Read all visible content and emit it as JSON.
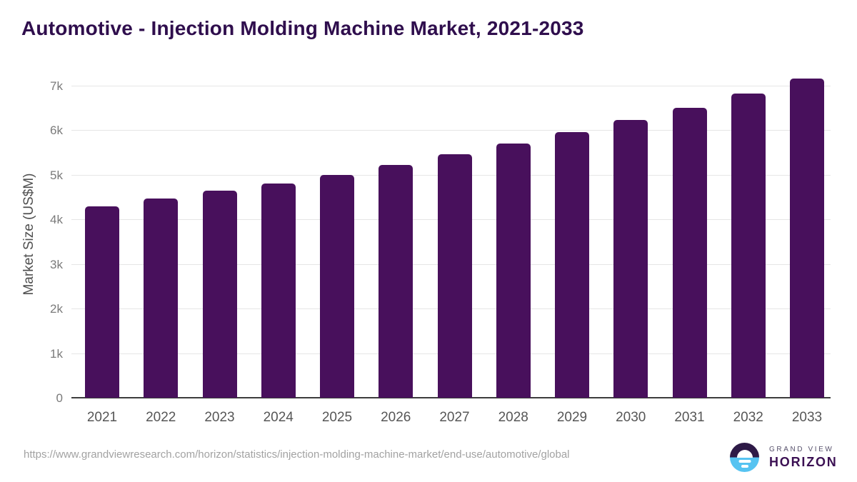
{
  "title": "Automotive - Injection Molding Machine Market, 2021-2033",
  "chart_data": {
    "type": "bar",
    "title": "Automotive - Injection Molding Machine Market, 2021-2033",
    "categories": [
      "2021",
      "2022",
      "2023",
      "2024",
      "2025",
      "2026",
      "2027",
      "2028",
      "2029",
      "2030",
      "2031",
      "2032",
      "2033"
    ],
    "values": [
      4290,
      4470,
      4640,
      4800,
      5000,
      5220,
      5450,
      5690,
      5950,
      6220,
      6500,
      6820,
      7150
    ],
    "xlabel": "",
    "ylabel": "Market Size (US$M)",
    "ylim": [
      0,
      7000
    ],
    "yticks": [
      "0",
      "1k",
      "2k",
      "3k",
      "4k",
      "5k",
      "6k",
      "7k"
    ],
    "grid": true,
    "legend": "none",
    "bar_color": "#48105c"
  },
  "footer": {
    "source_url": "https://www.grandviewresearch.com/horizon/statistics/injection-molding-machine-market/end-use/automotive/global",
    "logo": {
      "line1": "GRAND VIEW",
      "line2": "HORIZON",
      "mark_top_color": "#2e1a47",
      "mark_bottom_color": "#56c3f1"
    }
  },
  "colors": {
    "bar": "#48105c",
    "title_text": "#2f0e4d",
    "axis_label_text": "#565656",
    "tick_text": "#7a7a7a",
    "gridline": "#e6e6e6",
    "baseline": "#3d3d3d",
    "url_text": "#a2a2a2"
  }
}
